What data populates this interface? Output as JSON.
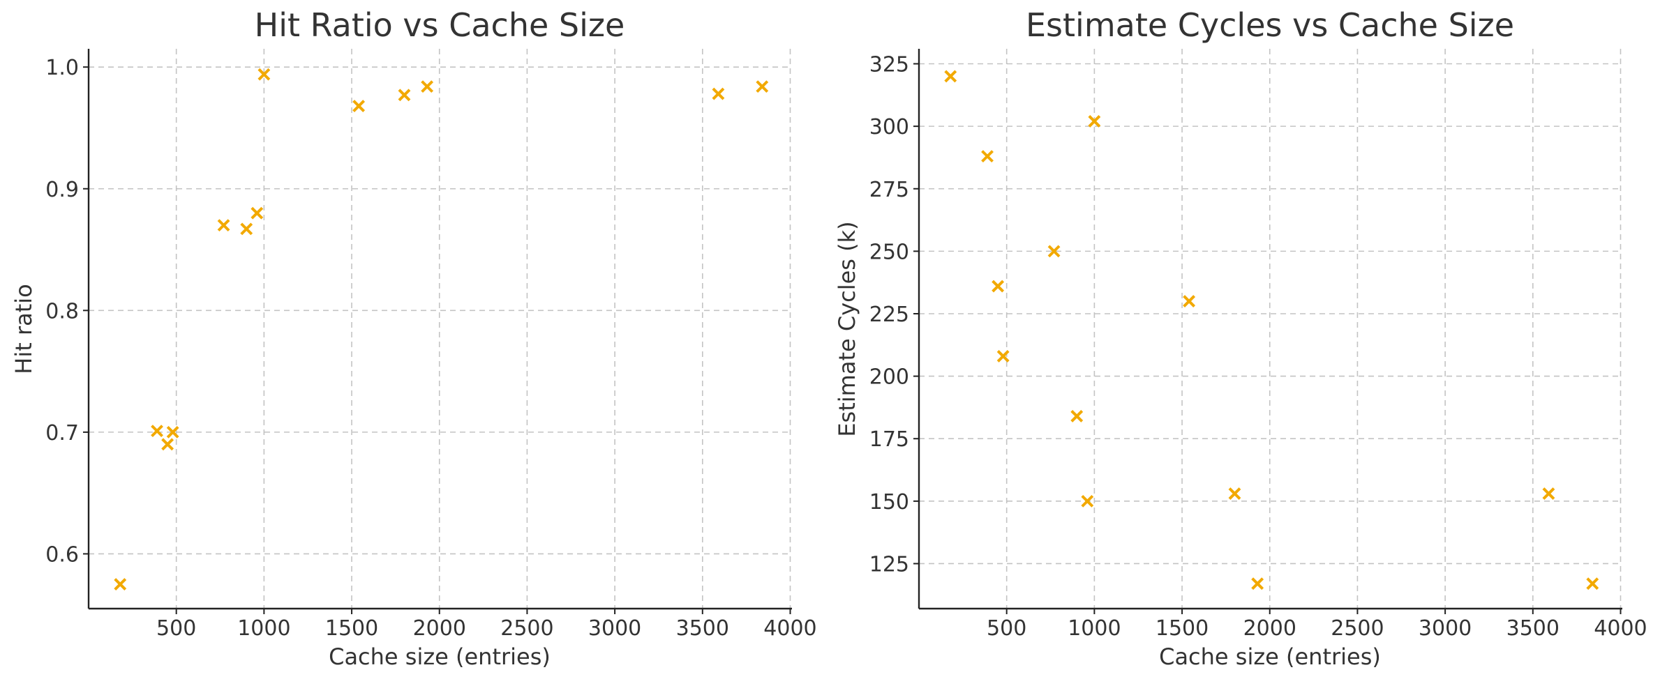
{
  "chart_data": [
    {
      "type": "scatter",
      "title": "Hit Ratio vs Cache Size",
      "xlabel": "Cache size (entries)",
      "ylabel": "Hit ratio",
      "xlim": [
        0,
        4010
      ],
      "ylim": [
        0.555,
        1.015
      ],
      "xticks": [
        500,
        1000,
        1500,
        2000,
        2500,
        3000,
        3500,
        4000
      ],
      "yticks": [
        0.6,
        0.7,
        0.8,
        0.9,
        1.0
      ],
      "ytick_labels": [
        "0.6",
        "0.7",
        "0.8",
        "0.9",
        "1.0"
      ],
      "grid": true,
      "marker": "x",
      "color": "#f2a900",
      "points": [
        {
          "x": 180,
          "y": 0.575
        },
        {
          "x": 390,
          "y": 0.701
        },
        {
          "x": 450,
          "y": 0.69
        },
        {
          "x": 480,
          "y": 0.7
        },
        {
          "x": 770,
          "y": 0.87
        },
        {
          "x": 900,
          "y": 0.867
        },
        {
          "x": 960,
          "y": 0.88
        },
        {
          "x": 1000,
          "y": 0.994
        },
        {
          "x": 1540,
          "y": 0.968
        },
        {
          "x": 1800,
          "y": 0.977
        },
        {
          "x": 1930,
          "y": 0.984
        },
        {
          "x": 3590,
          "y": 0.978
        },
        {
          "x": 3840,
          "y": 0.984
        }
      ]
    },
    {
      "type": "scatter",
      "title": "Estimate Cycles vs Cache Size",
      "xlabel": "Cache size (entries)",
      "ylabel": "Estimate Cycles (k)",
      "xlim": [
        0,
        4010
      ],
      "ylim": [
        107,
        331
      ],
      "xticks": [
        500,
        1000,
        1500,
        2000,
        2500,
        3000,
        3500,
        4000
      ],
      "yticks": [
        125,
        150,
        175,
        200,
        225,
        250,
        275,
        300,
        325
      ],
      "ytick_labels": [
        "125",
        "150",
        "175",
        "200",
        "225",
        "250",
        "275",
        "300",
        "325"
      ],
      "grid": true,
      "marker": "x",
      "color": "#f2a900",
      "points": [
        {
          "x": 180,
          "y": 320
        },
        {
          "x": 390,
          "y": 288
        },
        {
          "x": 450,
          "y": 236
        },
        {
          "x": 480,
          "y": 208
        },
        {
          "x": 770,
          "y": 250
        },
        {
          "x": 900,
          "y": 184
        },
        {
          "x": 960,
          "y": 150
        },
        {
          "x": 1000,
          "y": 302
        },
        {
          "x": 1540,
          "y": 230
        },
        {
          "x": 1800,
          "y": 153
        },
        {
          "x": 1930,
          "y": 117
        },
        {
          "x": 3590,
          "y": 153
        },
        {
          "x": 3840,
          "y": 117
        }
      ]
    }
  ]
}
